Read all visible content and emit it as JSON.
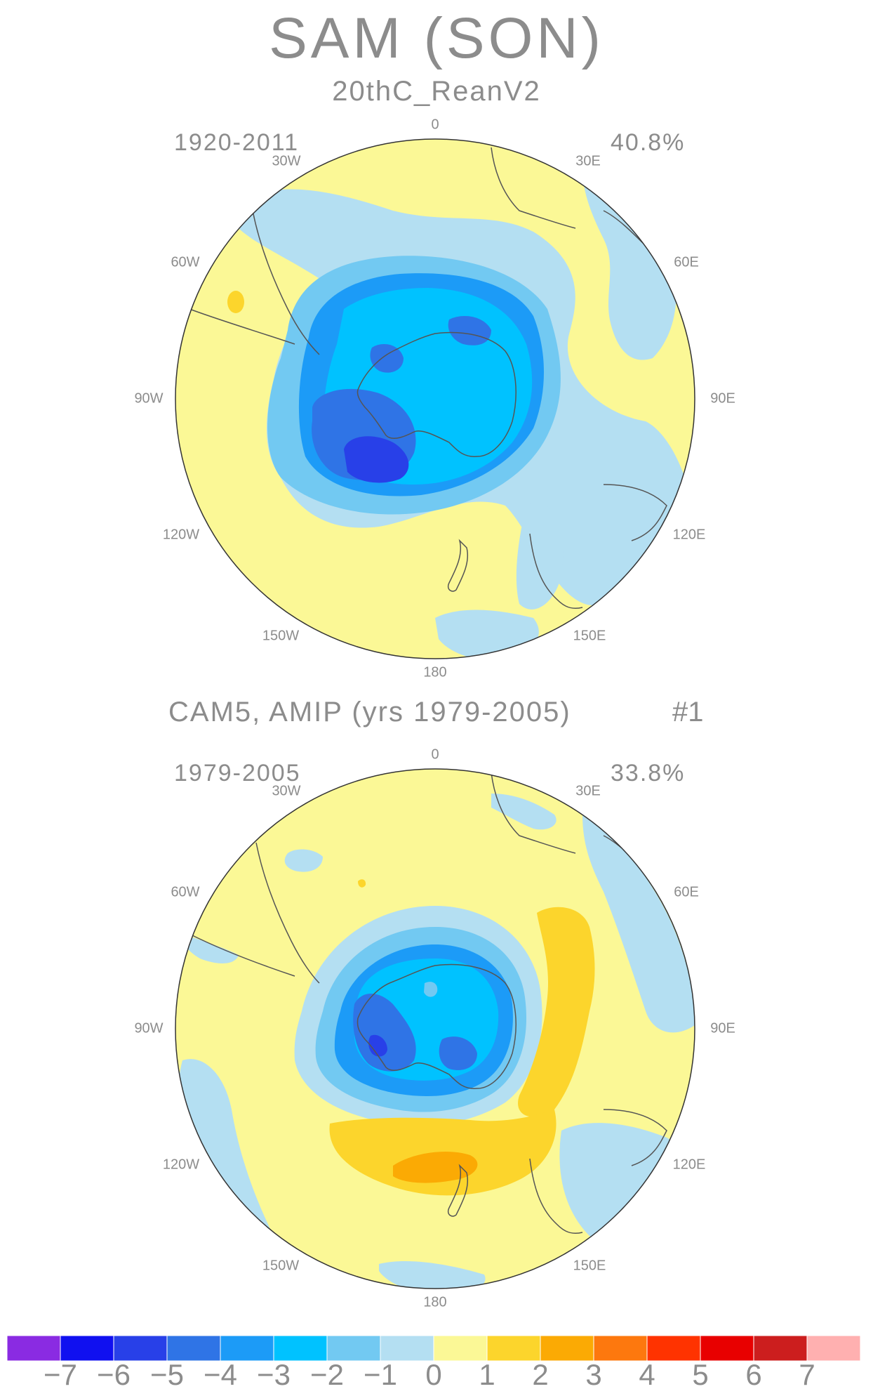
{
  "title": "SAM (SON)",
  "panels": [
    {
      "subtitle": "20thC_ReanV2",
      "years": "1920-2011",
      "variance": "40.8%",
      "longitudes": [
        "0",
        "30E",
        "60E",
        "90E",
        "120E",
        "150E",
        "180",
        "150W",
        "120W",
        "90W",
        "60W",
        "30W"
      ]
    },
    {
      "subtitle": "CAM5, AMIP (yrs 1979-2005)",
      "run_label": "#1",
      "years": "1979-2005",
      "variance": "33.8%",
      "longitudes": [
        "0",
        "30E",
        "60E",
        "90E",
        "120E",
        "150E",
        "180",
        "150W",
        "120W",
        "90W",
        "60W",
        "30W"
      ]
    }
  ],
  "colorbar": {
    "colors": [
      "#8a2be2",
      "#1010f0",
      "#2840e8",
      "#2f74e6",
      "#1c9bf7",
      "#00c2ff",
      "#72c9f2",
      "#b4dff2",
      "#fbf896",
      "#fcd52c",
      "#fbaa04",
      "#fd780e",
      "#ff3300",
      "#e80000",
      "#cc1e1e",
      "#ffb0b0"
    ],
    "labels": [
      "−7",
      "−6",
      "−5",
      "−4",
      "−3",
      "−2",
      "−1",
      "0",
      "1",
      "2",
      "3",
      "4",
      "5",
      "6",
      "7"
    ]
  }
}
